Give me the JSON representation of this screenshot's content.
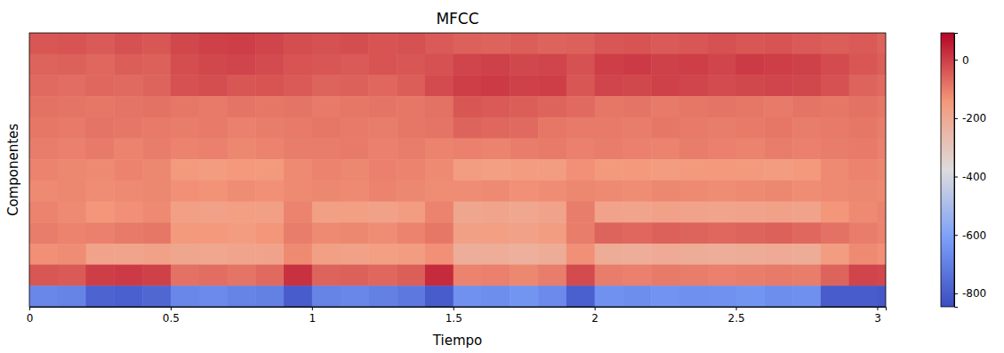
{
  "chart_data": {
    "type": "heatmap",
    "title": "MFCC",
    "x_label": "Tiempo",
    "y_label": "Componentes",
    "x_edges": [
      0,
      0.1,
      0.2,
      0.3,
      0.4,
      0.5,
      0.6,
      0.7,
      0.8,
      0.9,
      1.0,
      1.1,
      1.2,
      1.3,
      1.4,
      1.5,
      1.6,
      1.7,
      1.8,
      1.9,
      2.0,
      2.1,
      2.2,
      2.3,
      2.4,
      2.5,
      2.6,
      2.7,
      2.8,
      2.9,
      3.0,
      3.03
    ],
    "xlim": [
      0,
      3.03
    ],
    "xticks": [
      0,
      0.5,
      1,
      1.5,
      2,
      2.5,
      3
    ],
    "tick_labels": "x",
    "cells": [
      [
        -40,
        -35,
        -45,
        -30,
        -40,
        -15,
        -5,
        0,
        -10,
        -25,
        -30,
        -25,
        -35,
        -30,
        -45,
        -55,
        -60,
        -50,
        -60,
        -55,
        -40,
        -35,
        -45,
        -40,
        -30,
        -40,
        -35,
        -45,
        -50,
        -45,
        -60
      ],
      [
        -60,
        -55,
        -65,
        -50,
        -55,
        -25,
        -15,
        -10,
        -20,
        -35,
        -40,
        -45,
        -35,
        -40,
        -30,
        -10,
        -5,
        -15,
        -10,
        -30,
        0,
        5,
        -5,
        0,
        -10,
        5,
        0,
        -5,
        -20,
        -40,
        -50
      ],
      [
        -70,
        -75,
        -65,
        -70,
        -60,
        -30,
        -25,
        -40,
        -35,
        -45,
        -60,
        -55,
        -65,
        -50,
        -20,
        0,
        5,
        -5,
        0,
        -40,
        -10,
        -15,
        -5,
        -10,
        -20,
        -15,
        -10,
        -15,
        -30,
        -60,
        -70
      ],
      [
        -80,
        -85,
        -90,
        -85,
        -80,
        -90,
        -95,
        -85,
        -90,
        -85,
        -95,
        -90,
        -85,
        -90,
        -80,
        -40,
        -45,
        -50,
        -60,
        -70,
        -90,
        -85,
        -95,
        -90,
        -85,
        -90,
        -95,
        -85,
        -90,
        -80,
        -90
      ],
      [
        -90,
        -95,
        -85,
        -90,
        -95,
        -100,
        -95,
        -105,
        -100,
        -95,
        -90,
        -95,
        -100,
        -90,
        -85,
        -60,
        -65,
        -70,
        -90,
        -95,
        -95,
        -100,
        -90,
        -95,
        -100,
        -95,
        -90,
        -100,
        -95,
        -90,
        -100
      ],
      [
        -100,
        -105,
        -95,
        -110,
        -100,
        -110,
        -105,
        -115,
        -110,
        -100,
        -100,
        -95,
        -105,
        -100,
        -110,
        -105,
        -110,
        -100,
        -95,
        -105,
        -100,
        -105,
        -110,
        -100,
        -105,
        -110,
        -100,
        -105,
        -100,
        -95,
        -105
      ],
      [
        -110,
        -115,
        -120,
        -110,
        -115,
        -150,
        -155,
        -145,
        -150,
        -120,
        -110,
        -115,
        -105,
        -110,
        -120,
        -160,
        -165,
        -155,
        -160,
        -130,
        -150,
        -145,
        -155,
        -150,
        -145,
        -150,
        -155,
        -145,
        -120,
        -110,
        -115
      ],
      [
        -120,
        -115,
        -125,
        -120,
        -115,
        -130,
        -135,
        -125,
        -130,
        -120,
        -115,
        -120,
        -110,
        -115,
        -125,
        -125,
        -120,
        -130,
        -125,
        -115,
        -120,
        -125,
        -115,
        -120,
        -125,
        -120,
        -115,
        -125,
        -120,
        -115,
        -120
      ],
      [
        -110,
        -120,
        -140,
        -130,
        -120,
        -170,
        -175,
        -165,
        -170,
        -110,
        -170,
        -165,
        -175,
        -160,
        -110,
        -190,
        -185,
        -195,
        -180,
        -100,
        -180,
        -185,
        -175,
        -180,
        -185,
        -180,
        -175,
        -180,
        -140,
        -120,
        -110
      ],
      [
        -100,
        -110,
        -105,
        -95,
        -90,
        -150,
        -145,
        -155,
        -140,
        -100,
        -120,
        -115,
        -125,
        -110,
        -90,
        -170,
        -165,
        -175,
        -160,
        -100,
        -60,
        -65,
        -55,
        -60,
        -65,
        -60,
        -55,
        -65,
        -80,
        -100,
        -110
      ],
      [
        -130,
        -125,
        -180,
        -185,
        -175,
        -190,
        -195,
        -185,
        -180,
        -120,
        -170,
        -175,
        -165,
        -160,
        -130,
        -220,
        -215,
        -225,
        -210,
        -130,
        -210,
        -215,
        -205,
        -210,
        -215,
        -210,
        -205,
        -210,
        -160,
        -120,
        -130
      ],
      [
        -40,
        -45,
        0,
        5,
        -5,
        -80,
        -75,
        -85,
        -70,
        20,
        -60,
        -55,
        -65,
        -50,
        30,
        -110,
        -105,
        -115,
        -100,
        -20,
        -100,
        -105,
        -95,
        -100,
        -105,
        -100,
        -95,
        -100,
        -60,
        -10,
        -15
      ],
      [
        -680,
        -690,
        -780,
        -790,
        -770,
        -680,
        -670,
        -690,
        -700,
        -800,
        -690,
        -680,
        -700,
        -720,
        -800,
        -650,
        -660,
        -640,
        -670,
        -790,
        -650,
        -660,
        -645,
        -655,
        -650,
        -640,
        -660,
        -655,
        -800,
        -800,
        -810
      ]
    ],
    "colorbar": {
      "range": [
        -846,
        92
      ],
      "ticks": [
        0,
        -200,
        -400,
        -600,
        -800
      ]
    }
  }
}
